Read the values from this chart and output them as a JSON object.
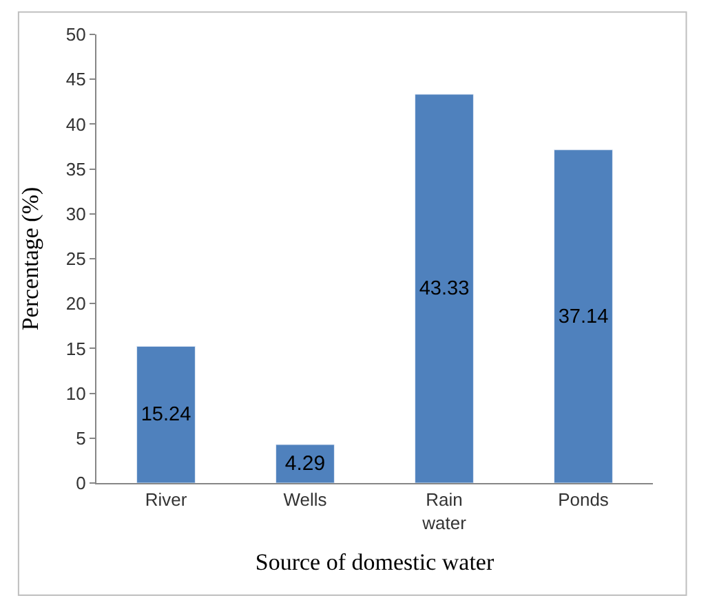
{
  "chart_data": {
    "type": "bar",
    "categories": [
      "River",
      "Wells",
      "Rain water",
      "Ponds"
    ],
    "values": [
      15.24,
      4.29,
      43.33,
      37.14
    ],
    "color": "#4f81bd",
    "xlabel": "Source of domestic water",
    "ylabel": "Percentage (%)",
    "ylim": [
      0,
      50
    ],
    "yticks": [
      0,
      5,
      10,
      15,
      20,
      25,
      30,
      35,
      40,
      45,
      50
    ],
    "data_labels": true
  }
}
